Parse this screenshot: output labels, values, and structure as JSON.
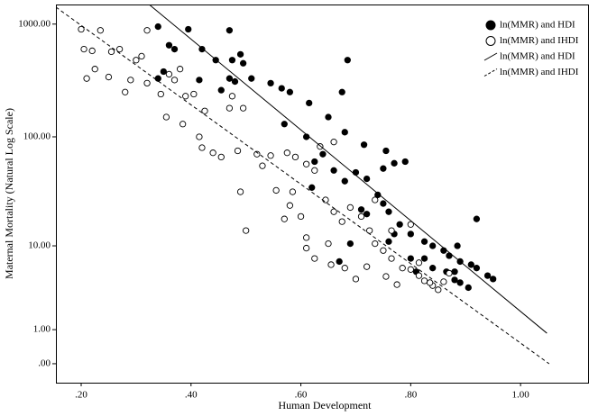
{
  "chart_data": {
    "type": "scatter",
    "xlabel": "Human Development",
    "ylabel": "Maternal Mortality (Natural Log Scale)",
    "xlim": [
      0.154,
      1.123
    ],
    "ylim": [
      -0.32,
      1490
    ],
    "yscale": "log1p",
    "xticks": [
      {
        "value": 0.2,
        "label": ".20"
      },
      {
        "value": 0.4,
        "label": ".40"
      },
      {
        "value": 0.6,
        "label": ".60"
      },
      {
        "value": 0.8,
        "label": ".80"
      },
      {
        "value": 1.0,
        "label": "1.00"
      }
    ],
    "yticks": [
      {
        "value": 0,
        "label": ".00"
      },
      {
        "value": 1,
        "label": "1.00"
      },
      {
        "value": 10,
        "label": "10.00"
      },
      {
        "value": 100,
        "label": "100.00"
      },
      {
        "value": 1000,
        "label": "1000.00"
      }
    ],
    "legend": "top-right",
    "series": [
      {
        "name": "ln(MMR) and HDI",
        "type": "scatter",
        "marker": "filled",
        "color": "#000000",
        "x": [
          0.34,
          0.395,
          0.47,
          0.36,
          0.37,
          0.42,
          0.49,
          0.445,
          0.475,
          0.495,
          0.35,
          0.415,
          0.47,
          0.48,
          0.51,
          0.545,
          0.565,
          0.58,
          0.455,
          0.34,
          0.685,
          0.675,
          0.615,
          0.65,
          0.57,
          0.61,
          0.68,
          0.715,
          0.755,
          0.79,
          0.77,
          0.75,
          0.64,
          0.625,
          0.66,
          0.7,
          0.62,
          0.68,
          0.72,
          0.74,
          0.75,
          0.76,
          0.78,
          0.8,
          0.825,
          0.84,
          0.86,
          0.87,
          0.89,
          0.91,
          0.92,
          0.94,
          0.95,
          0.92,
          0.885,
          0.825,
          0.84,
          0.865,
          0.88,
          0.89,
          0.81,
          0.76,
          0.72,
          0.69,
          0.67,
          0.77,
          0.8,
          0.905,
          0.88,
          0.71
        ],
        "values": [
          950,
          900,
          880,
          650,
          600,
          600,
          540,
          480,
          480,
          450,
          380,
          320,
          330,
          310,
          330,
          300,
          270,
          250,
          260,
          330,
          480,
          250,
          200,
          150,
          130,
          100,
          110,
          85,
          75,
          60,
          58,
          52,
          70,
          60,
          50,
          48,
          35,
          40,
          42,
          30,
          25,
          21,
          16,
          13,
          11,
          10,
          9,
          8,
          7,
          6.5,
          6,
          5,
          4.6,
          18,
          10,
          7.5,
          6,
          5.5,
          4.5,
          4.2,
          5.5,
          11,
          20,
          10.5,
          7,
          13,
          7.5,
          3.7,
          5.5,
          22
        ]
      },
      {
        "name": "ln(MMR) and IHDI",
        "type": "scatter",
        "marker": "open",
        "color": "#000000",
        "x": [
          0.2,
          0.205,
          0.235,
          0.22,
          0.255,
          0.27,
          0.21,
          0.225,
          0.25,
          0.28,
          0.29,
          0.3,
          0.31,
          0.32,
          0.32,
          0.345,
          0.36,
          0.37,
          0.38,
          0.39,
          0.355,
          0.385,
          0.405,
          0.415,
          0.42,
          0.44,
          0.47,
          0.475,
          0.495,
          0.485,
          0.49,
          0.5,
          0.52,
          0.53,
          0.545,
          0.575,
          0.59,
          0.61,
          0.625,
          0.635,
          0.66,
          0.555,
          0.58,
          0.585,
          0.6,
          0.645,
          0.66,
          0.675,
          0.69,
          0.71,
          0.725,
          0.735,
          0.75,
          0.765,
          0.785,
          0.8,
          0.815,
          0.825,
          0.84,
          0.85,
          0.61,
          0.625,
          0.655,
          0.68,
          0.7,
          0.72,
          0.755,
          0.775,
          0.815,
          0.835,
          0.86,
          0.87,
          0.735,
          0.765,
          0.8,
          0.57,
          0.425,
          0.455,
          0.61,
          0.65
        ],
        "values": [
          900,
          600,
          880,
          580,
          570,
          600,
          330,
          400,
          340,
          250,
          320,
          480,
          520,
          880,
          300,
          240,
          360,
          320,
          400,
          230,
          150,
          130,
          240,
          100,
          80,
          72,
          180,
          230,
          180,
          75,
          32,
          14,
          70,
          55,
          68,
          72,
          66,
          57,
          50,
          82,
          90,
          33,
          24,
          32,
          19,
          27,
          21,
          17,
          23,
          19,
          14,
          10.5,
          9,
          7.5,
          6,
          5.8,
          5,
          4.4,
          3.9,
          3.5,
          9.5,
          7.5,
          6.5,
          6,
          4.6,
          6.2,
          4.9,
          4,
          6.8,
          4.2,
          4.3,
          5.3,
          27,
          14,
          16,
          18,
          170,
          66,
          12,
          10.5
        ]
      },
      {
        "name": "ln(MMR) and HDI",
        "type": "line",
        "style": "solid",
        "color": "#000000",
        "x": [
          0.323,
          1.048
        ],
        "values": [
          1500,
          0.86
        ]
      },
      {
        "name": "ln(MMR) and IHDI",
        "type": "line",
        "style": "dashed",
        "color": "#000000",
        "x": [
          0.154,
          1.052
        ],
        "values": [
          1412,
          0
        ]
      }
    ]
  }
}
